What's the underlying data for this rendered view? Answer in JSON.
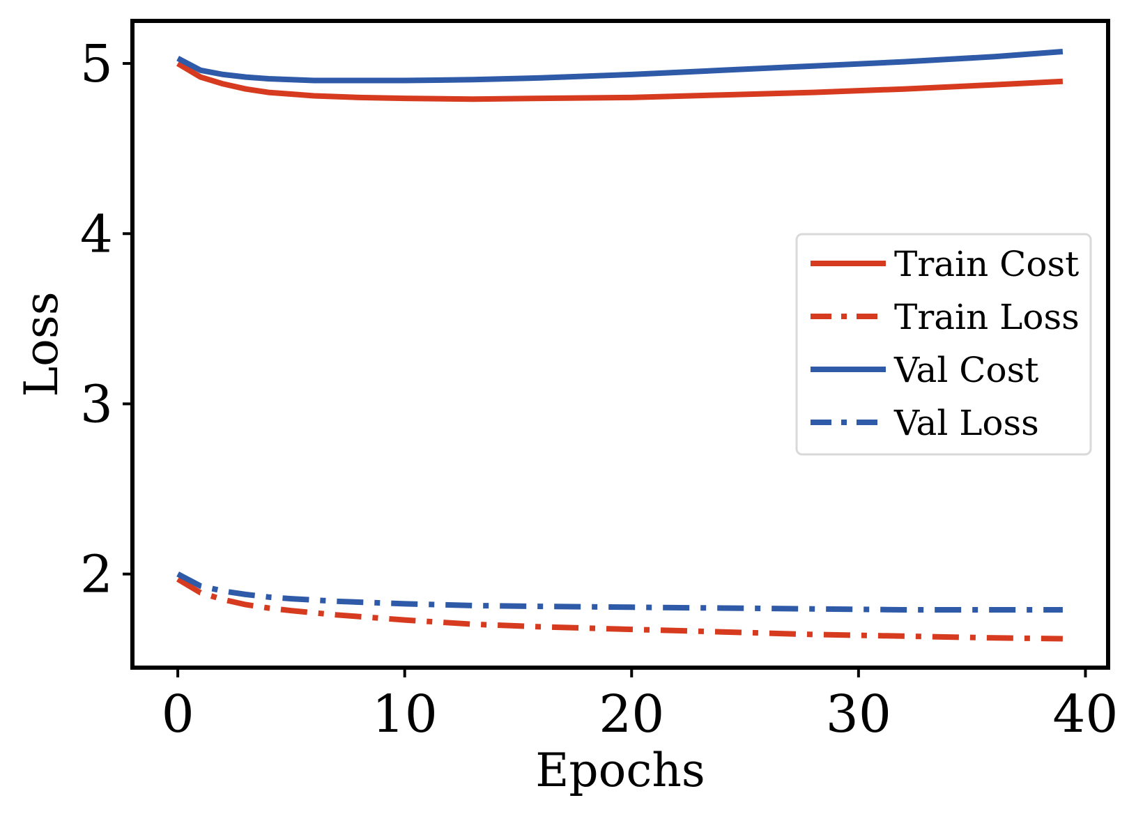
{
  "chart_data": {
    "type": "line",
    "xlabel": "Epochs",
    "ylabel": "Loss",
    "xlim": [
      -2,
      41
    ],
    "ylim": [
      1.45,
      5.25
    ],
    "xticks": [
      0,
      10,
      20,
      30,
      40
    ],
    "yticks": [
      2,
      3,
      4,
      5
    ],
    "grid": false,
    "legend_position": "right",
    "series": [
      {
        "name": "Train Cost",
        "color": "#d63b1f",
        "style": "solid",
        "x": [
          0,
          1,
          2,
          3,
          4,
          5,
          6,
          8,
          10,
          13,
          16,
          20,
          24,
          28,
          32,
          36,
          39
        ],
        "y": [
          5.0,
          4.92,
          4.88,
          4.85,
          4.83,
          4.82,
          4.81,
          4.8,
          4.795,
          4.79,
          4.795,
          4.8,
          4.815,
          4.83,
          4.85,
          4.875,
          4.895
        ]
      },
      {
        "name": "Train Loss",
        "color": "#d63b1f",
        "style": "dashdot",
        "x": [
          0,
          1,
          2,
          3,
          4,
          5,
          7,
          10,
          13,
          16,
          20,
          24,
          28,
          32,
          36,
          39
        ],
        "y": [
          1.97,
          1.89,
          1.85,
          1.82,
          1.8,
          1.785,
          1.76,
          1.73,
          1.705,
          1.69,
          1.675,
          1.66,
          1.645,
          1.635,
          1.625,
          1.62
        ]
      },
      {
        "name": "Val Cost",
        "color": "#2f5aa8",
        "style": "solid",
        "x": [
          0,
          1,
          2,
          3,
          4,
          6,
          8,
          10,
          13,
          16,
          20,
          24,
          28,
          32,
          36,
          39
        ],
        "y": [
          5.03,
          4.96,
          4.935,
          4.92,
          4.91,
          4.9,
          4.9,
          4.9,
          4.905,
          4.915,
          4.935,
          4.96,
          4.985,
          5.01,
          5.04,
          5.07
        ]
      },
      {
        "name": "Val Loss",
        "color": "#2f5aa8",
        "style": "dashdot",
        "x": [
          0,
          1,
          2,
          3,
          4,
          5,
          7,
          10,
          13,
          16,
          20,
          24,
          28,
          32,
          36,
          39
        ],
        "y": [
          2.0,
          1.93,
          1.9,
          1.88,
          1.865,
          1.855,
          1.84,
          1.825,
          1.815,
          1.81,
          1.805,
          1.8,
          1.795,
          1.79,
          1.79,
          1.79
        ]
      }
    ]
  }
}
